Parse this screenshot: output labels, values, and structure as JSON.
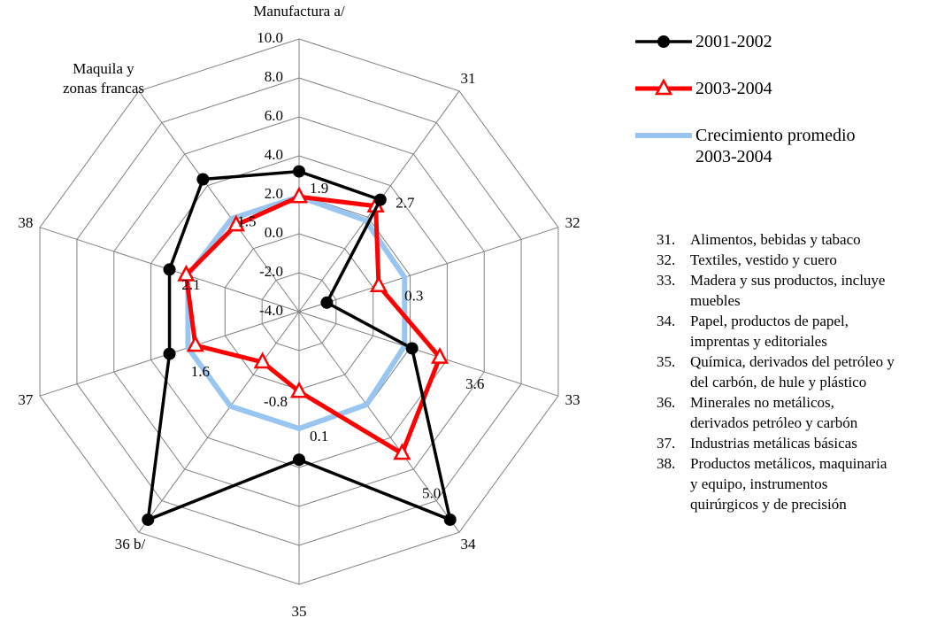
{
  "chart_data": {
    "type": "radar",
    "categories": [
      "Manufactura a/",
      "31",
      "32",
      "33",
      "34",
      "35",
      "36 b/",
      "37",
      "38",
      "Maquila y zonas francas"
    ],
    "rlim": [
      -4,
      10
    ],
    "rticks": [
      {
        "value": -4,
        "label": "-4.0"
      },
      {
        "value": -2,
        "label": "-2.0"
      },
      {
        "value": 0,
        "label": "0.0"
      },
      {
        "value": 2,
        "label": "2.0"
      },
      {
        "value": 4,
        "label": "4.0"
      },
      {
        "value": 6,
        "label": "6.0"
      },
      {
        "value": 8,
        "label": "8.0"
      },
      {
        "value": 10,
        "label": "10.0"
      }
    ],
    "grid": true,
    "series": [
      {
        "name": "2001-2002",
        "color": "#000000",
        "marker": "circle",
        "values": [
          3.2,
          3.1,
          -2.5,
          2.1,
          9.2,
          3.6,
          9.2,
          3.0,
          3.0,
          4.4
        ]
      },
      {
        "name": "2003-2004",
        "color": "#ff0000",
        "marker": "triangle",
        "values": [
          1.9,
          2.7,
          0.3,
          3.6,
          5.0,
          0.1,
          -0.8,
          1.6,
          2.1,
          1.5
        ],
        "value_labels": [
          "1.9",
          "2.7",
          "0.3",
          "3.6",
          "5.0",
          "0.1",
          "-0.8",
          "1.6",
          "2.1",
          "1.5"
        ]
      },
      {
        "name": "Crecimiento promedio 2003-2004",
        "color": "#99c6f0",
        "marker": "none",
        "values": [
          1.9,
          1.8,
          1.7,
          1.7,
          1.9,
          2.0,
          2.0,
          2.0,
          2.0,
          1.9
        ]
      }
    ],
    "notes": [
      {
        "num": "31.",
        "lines": [
          "Alimentos, bebidas y tabaco"
        ]
      },
      {
        "num": "32.",
        "lines": [
          "Textiles, vestido y cuero"
        ]
      },
      {
        "num": "33.",
        "lines": [
          "Madera y sus productos, incluye",
          "muebles"
        ]
      },
      {
        "num": "34.",
        "lines": [
          "Papel, productos de papel,",
          "imprentas y editoriales"
        ]
      },
      {
        "num": "35.",
        "lines": [
          "Química, derivados del petróleo y",
          "del carbón, de hule y plástico"
        ]
      },
      {
        "num": "36.",
        "lines": [
          "Minerales no metálicos,",
          "derivados petróleo y carbón"
        ]
      },
      {
        "num": "37.",
        "lines": [
          "Industrias metálicas básicas"
        ]
      },
      {
        "num": "38.",
        "lines": [
          "Productos metálicos, maquinaria",
          "y equipo, instrumentos",
          "quirúrgicos y de precisión"
        ]
      }
    ]
  }
}
